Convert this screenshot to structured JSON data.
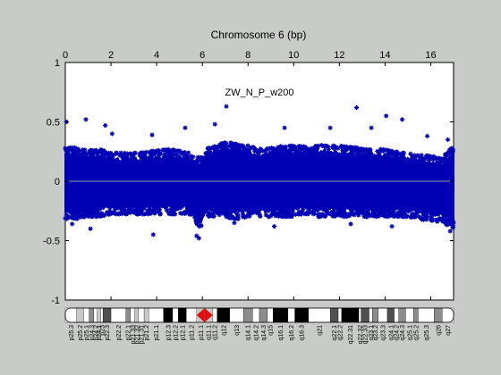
{
  "figure": {
    "background": "#c8cbc8",
    "plot_background": "#ffffff",
    "point_color": "#0000b4"
  },
  "chart_data": {
    "type": "scatter",
    "title": "Chromosome 6 (bp)",
    "annotation": "ZW_N_P_w200",
    "xlabel": "",
    "ylabel": "",
    "xlim": [
      0,
      17
    ],
    "ylim": [
      -1,
      1
    ],
    "x_tick_position": "top",
    "x_ticks": [
      0,
      2,
      4,
      6,
      8,
      10,
      12,
      14,
      16
    ],
    "y_ticks": [
      -1,
      -0.5,
      0,
      0.5,
      1
    ],
    "y_tick_labels": [
      "-1",
      "-0.5",
      "0",
      "0.5",
      "1"
    ],
    "grid": false,
    "reference_line_y": 0,
    "series": [
      {
        "marker": "asterisk",
        "color": "#0000b4",
        "envelope_note_x_y": [
          [
            0.0,
            -0.32,
            0.3
          ],
          [
            0.5,
            -0.32,
            0.28
          ],
          [
            1.0,
            -0.3,
            0.26
          ],
          [
            1.5,
            -0.3,
            0.27
          ],
          [
            2.0,
            -0.28,
            0.25
          ],
          [
            2.5,
            -0.28,
            0.24
          ],
          [
            3.0,
            -0.28,
            0.24
          ],
          [
            3.5,
            -0.28,
            0.25
          ],
          [
            4.0,
            -0.28,
            0.26
          ],
          [
            4.5,
            -0.28,
            0.27
          ],
          [
            5.0,
            -0.28,
            0.26
          ],
          [
            5.5,
            -0.28,
            0.24
          ],
          [
            5.9,
            -0.4,
            0.2
          ],
          [
            6.2,
            -0.3,
            0.28
          ],
          [
            6.5,
            -0.3,
            0.3
          ],
          [
            7.0,
            -0.3,
            0.33
          ],
          [
            7.5,
            -0.32,
            0.32
          ],
          [
            8.0,
            -0.3,
            0.3
          ],
          [
            8.5,
            -0.3,
            0.28
          ],
          [
            9.0,
            -0.3,
            0.28
          ],
          [
            9.5,
            -0.3,
            0.3
          ],
          [
            10.0,
            -0.3,
            0.3
          ],
          [
            10.5,
            -0.28,
            0.3
          ],
          [
            11.0,
            -0.3,
            0.3
          ],
          [
            11.5,
            -0.3,
            0.31
          ],
          [
            12.0,
            -0.3,
            0.3
          ],
          [
            12.5,
            -0.3,
            0.29
          ],
          [
            13.0,
            -0.3,
            0.28
          ],
          [
            13.5,
            -0.3,
            0.28
          ],
          [
            14.0,
            -0.3,
            0.27
          ],
          [
            14.5,
            -0.3,
            0.25
          ],
          [
            15.0,
            -0.3,
            0.24
          ],
          [
            15.5,
            -0.32,
            0.22
          ],
          [
            16.0,
            -0.33,
            0.22
          ],
          [
            16.5,
            -0.35,
            0.2
          ],
          [
            17.0,
            -0.4,
            0.3
          ]
        ],
        "gap_x_range": [
          6.0,
          6.15
        ],
        "outliers": [
          [
            0.05,
            0.5
          ],
          [
            0.9,
            0.52
          ],
          [
            7.05,
            0.63
          ],
          [
            12.75,
            0.62
          ],
          [
            14.05,
            0.55
          ],
          [
            14.75,
            0.52
          ],
          [
            1.75,
            0.47
          ],
          [
            5.25,
            0.45
          ],
          [
            6.55,
            0.48
          ],
          [
            15.85,
            0.38
          ],
          [
            16.75,
            0.35
          ],
          [
            2.05,
            0.4
          ],
          [
            3.8,
            0.39
          ],
          [
            9.6,
            0.45
          ],
          [
            11.6,
            0.45
          ],
          [
            13.4,
            0.45
          ],
          [
            5.75,
            -0.46
          ],
          [
            5.85,
            -0.48
          ],
          [
            3.85,
            -0.45
          ],
          [
            1.1,
            -0.4
          ],
          [
            16.85,
            -0.42
          ],
          [
            9.15,
            -0.38
          ],
          [
            12.5,
            -0.36
          ],
          [
            14.3,
            -0.38
          ],
          [
            0.3,
            -0.36
          ],
          [
            7.4,
            -0.35
          ]
        ]
      }
    ]
  },
  "ideogram": {
    "bands": [
      {
        "label": "p25.3",
        "end": 0.5,
        "stain": "gneg"
      },
      {
        "label": "p25.2",
        "end": 0.8,
        "stain": "gpos25"
      },
      {
        "label": "p25.1",
        "end": 1.05,
        "stain": "gneg"
      },
      {
        "label": "p24.3",
        "end": 1.25,
        "stain": "gpos50"
      },
      {
        "label": "p24.2",
        "end": 1.4,
        "stain": "gneg"
      },
      {
        "label": "p24.1",
        "end": 1.55,
        "stain": "gpos25"
      },
      {
        "label": "p23",
        "end": 1.65,
        "stain": "gneg"
      },
      {
        "label": "p22.3",
        "end": 2.0,
        "stain": "gpos75"
      },
      {
        "label": "p22.2",
        "end": 2.65,
        "stain": "gneg"
      },
      {
        "label": "p22.1",
        "end": 2.85,
        "stain": "gpos50"
      },
      {
        "label": "p21.33",
        "end": 3.05,
        "stain": "gneg"
      },
      {
        "label": "p21.32",
        "end": 3.2,
        "stain": "gpos25"
      },
      {
        "label": "p21.31",
        "end": 3.45,
        "stain": "gneg"
      },
      {
        "label": "p21.2",
        "end": 3.65,
        "stain": "gpos25"
      },
      {
        "label": "p21.1",
        "end": 4.3,
        "stain": "gneg"
      },
      {
        "label": "p12.3",
        "end": 4.7,
        "stain": "gpos100"
      },
      {
        "label": "p12.2",
        "end": 4.95,
        "stain": "gneg"
      },
      {
        "label": "p12.1",
        "end": 5.3,
        "stain": "gpos100"
      },
      {
        "label": "p11.2",
        "end": 5.75,
        "stain": "gneg"
      },
      {
        "label": "p11.1",
        "end": 6.1,
        "stain": "acen"
      },
      {
        "label": "q11.1",
        "end": 6.45,
        "stain": "acen"
      },
      {
        "label": "q11.2",
        "end": 6.65,
        "stain": "gneg"
      },
      {
        "label": "q12",
        "end": 7.2,
        "stain": "gpos100"
      },
      {
        "label": "q13",
        "end": 7.8,
        "stain": "gneg"
      },
      {
        "label": "q14.1",
        "end": 8.2,
        "stain": "gpos50"
      },
      {
        "label": "q14.2",
        "end": 8.5,
        "stain": "gneg"
      },
      {
        "label": "q14.3",
        "end": 8.85,
        "stain": "gpos50"
      },
      {
        "label": "q15",
        "end": 9.1,
        "stain": "gneg"
      },
      {
        "label": "q16.1",
        "end": 9.75,
        "stain": "gpos100"
      },
      {
        "label": "q16.2",
        "end": 10.05,
        "stain": "gneg"
      },
      {
        "label": "q16.3",
        "end": 10.65,
        "stain": "gpos100"
      },
      {
        "label": "q21",
        "end": 11.6,
        "stain": "gneg"
      },
      {
        "label": "q22.1",
        "end": 11.95,
        "stain": "gpos75"
      },
      {
        "label": "q22.2",
        "end": 12.1,
        "stain": "gneg"
      },
      {
        "label": "q22.31",
        "end": 12.85,
        "stain": "gpos100"
      },
      {
        "label": "q22.32",
        "end": 12.95,
        "stain": "gneg"
      },
      {
        "label": "q22.33",
        "end": 13.3,
        "stain": "gpos75"
      },
      {
        "label": "q23.1",
        "end": 13.45,
        "stain": "gneg"
      },
      {
        "label": "q23.2",
        "end": 13.7,
        "stain": "gpos50"
      },
      {
        "label": "q23.3",
        "end": 14.1,
        "stain": "gneg"
      },
      {
        "label": "q24.1",
        "end": 14.4,
        "stain": "gpos75"
      },
      {
        "label": "q24.2",
        "end": 14.6,
        "stain": "gneg"
      },
      {
        "label": "q24.3",
        "end": 14.9,
        "stain": "gpos50"
      },
      {
        "label": "q25.1",
        "end": 15.25,
        "stain": "gneg"
      },
      {
        "label": "q25.2",
        "end": 15.45,
        "stain": "gpos50"
      },
      {
        "label": "q25.3",
        "end": 16.15,
        "stain": "gneg"
      },
      {
        "label": "q26",
        "end": 16.5,
        "stain": "gpos50"
      },
      {
        "label": "q27",
        "end": 17.0,
        "stain": "gneg"
      }
    ],
    "stain_colors": {
      "gneg": "#ffffff",
      "gpos25": "#c8c8c8",
      "gpos50": "#8c8c8c",
      "gpos75": "#505050",
      "gpos100": "#000000",
      "acen": "#e01010"
    }
  }
}
